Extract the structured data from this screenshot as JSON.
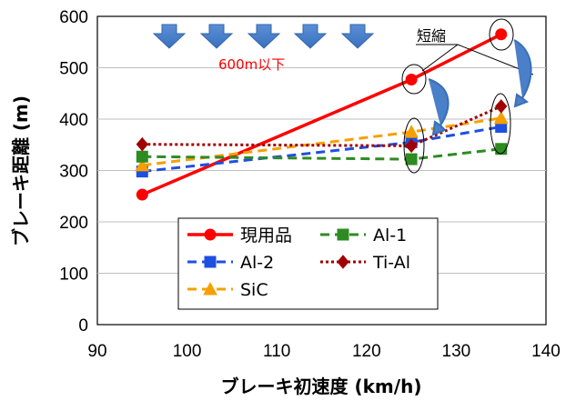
{
  "chart_data": {
    "type": "line",
    "xlabel": "ブレーキ初速度 (km/h)",
    "ylabel": "ブレーキ距離 (m)",
    "xlim": [
      90,
      140
    ],
    "ylim": [
      0,
      600
    ],
    "xticks": [
      90,
      100,
      110,
      120,
      130,
      140
    ],
    "yticks": [
      0,
      100,
      200,
      300,
      400,
      500,
      600
    ],
    "grid": "horizontal",
    "legend_position": "bottom-left",
    "series": [
      {
        "name": "現用品",
        "color": "#ff0000",
        "marker": "circle",
        "dash": "solid",
        "points": [
          [
            95,
            253
          ],
          [
            125,
            477
          ],
          [
            135,
            565
          ]
        ]
      },
      {
        "name": "Al-1",
        "color": "#2e8b22",
        "marker": "square",
        "dash": "dashed",
        "points": [
          [
            95,
            327
          ],
          [
            125,
            322
          ],
          [
            135,
            342
          ]
        ]
      },
      {
        "name": "Al-2",
        "color": "#1f4fe0",
        "marker": "square",
        "dash": "dashed",
        "points": [
          [
            95,
            298
          ],
          [
            125,
            355
          ],
          [
            135,
            385
          ]
        ]
      },
      {
        "name": "Ti-Al",
        "color": "#a00000",
        "marker": "diamond",
        "dash": "dotted",
        "points": [
          [
            95,
            351
          ],
          [
            125,
            348
          ],
          [
            135,
            425
          ]
        ]
      },
      {
        "name": "SiC",
        "color": "#f5a000",
        "marker": "triangle",
        "dash": "dashed",
        "points": [
          [
            95,
            310
          ],
          [
            125,
            375
          ],
          [
            135,
            402
          ]
        ]
      }
    ],
    "annotations": [
      {
        "text": "600m以下",
        "color": "#ff0000"
      },
      {
        "text": "短縮",
        "color": "#000000"
      }
    ]
  }
}
